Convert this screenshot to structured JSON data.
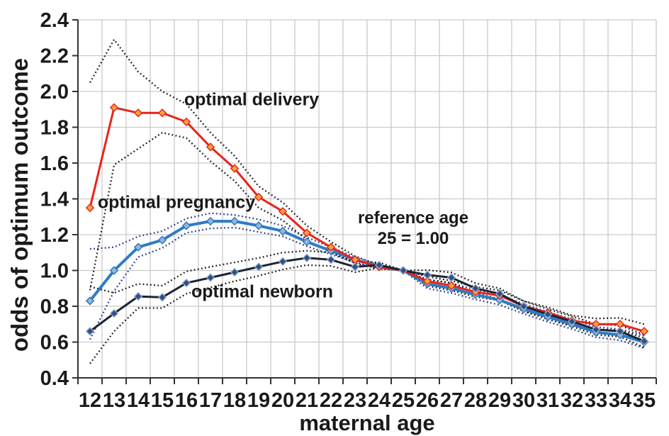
{
  "chart_data": {
    "type": "line",
    "title": "",
    "xlabel": "maternal age",
    "ylabel": "odds of optimum outcome",
    "x": [
      12,
      13,
      14,
      15,
      16,
      17,
      18,
      19,
      20,
      21,
      22,
      23,
      24,
      25,
      26,
      27,
      28,
      29,
      30,
      31,
      32,
      33,
      34,
      35
    ],
    "xtick_labels": [
      "12",
      "13",
      "14",
      "15",
      "16",
      "17",
      "18",
      "19",
      "20",
      "21",
      "22",
      "23",
      "24",
      "25",
      "26",
      "27",
      "28",
      "29",
      "30",
      "31",
      "32",
      "33",
      "34",
      "35"
    ],
    "ytick_labels": [
      "2.4",
      "2.2",
      "2.0",
      "1.8",
      "1.6",
      "1.4",
      "1.2",
      "1.0",
      "0.8",
      "0.6",
      "0.4"
    ],
    "ylim": [
      0.4,
      2.4
    ],
    "ytick_step": 0.2,
    "grid": true,
    "legend_position": "inline-annotations",
    "annotations": {
      "delivery": "optimal delivery",
      "pregnancy": "optimal pregnancy",
      "newborn": "optimal newborn",
      "reference_line1": "reference age",
      "reference_line2": "25 = 1.00"
    },
    "reference_age": 25,
    "reference_value": "1.00",
    "series": [
      {
        "name": "optimal pregnancy",
        "line_color": "#2E7CC4",
        "line_width": 4,
        "marker_fill": "#8FB8E0",
        "marker_stroke": "#2E75B6",
        "ci_color": "#2B3A90",
        "values": [
          0.83,
          1.0,
          1.13,
          1.17,
          1.25,
          1.275,
          1.275,
          1.25,
          1.22,
          1.16,
          1.11,
          1.06,
          1.02,
          1.0,
          0.925,
          0.9,
          0.865,
          0.835,
          0.785,
          0.74,
          0.7,
          0.655,
          0.64,
          0.6
        ],
        "ci_upper": [
          1.12,
          1.13,
          1.19,
          1.22,
          1.29,
          1.32,
          1.31,
          1.285,
          1.25,
          1.185,
          1.13,
          1.075,
          1.03,
          1.0,
          0.951,
          0.927,
          0.893,
          0.863,
          0.813,
          0.768,
          0.728,
          0.684,
          0.672,
          0.636
        ],
        "ci_lower": [
          0.615,
          0.885,
          1.075,
          1.125,
          1.21,
          1.235,
          1.24,
          1.215,
          1.19,
          1.135,
          1.09,
          1.045,
          1.01,
          1.0,
          0.9,
          0.874,
          0.838,
          0.808,
          0.758,
          0.713,
          0.673,
          0.627,
          0.61,
          0.566
        ]
      },
      {
        "name": "optimal delivery",
        "line_color": "#E8231A",
        "line_width": 3,
        "marker_fill": "#F9A13C",
        "marker_stroke": "#E8231A",
        "ci_color": "#1A1A1A",
        "values": [
          1.35,
          1.91,
          1.88,
          1.88,
          1.83,
          1.69,
          1.57,
          1.41,
          1.33,
          1.21,
          1.13,
          1.06,
          1.02,
          1.0,
          0.94,
          0.915,
          0.88,
          0.86,
          0.8,
          0.765,
          0.72,
          0.7,
          0.7,
          0.66
        ],
        "ci_upper": [
          2.05,
          2.29,
          2.11,
          2.0,
          1.93,
          1.77,
          1.64,
          1.47,
          1.38,
          1.25,
          1.16,
          1.08,
          1.03,
          1.0,
          0.966,
          0.942,
          0.908,
          0.889,
          0.829,
          0.794,
          0.749,
          0.732,
          0.735,
          0.7
        ],
        "ci_lower": [
          0.89,
          1.59,
          1.68,
          1.77,
          1.74,
          1.61,
          1.5,
          1.35,
          1.28,
          1.17,
          1.1,
          1.04,
          1.01,
          1.0,
          0.914,
          0.888,
          0.853,
          0.832,
          0.772,
          0.737,
          0.692,
          0.67,
          0.667,
          0.623
        ]
      },
      {
        "name": "optimal newborn",
        "line_color": "#1B2434",
        "line_width": 3,
        "marker_fill": "#31507F",
        "marker_stroke": "#8CA6CC",
        "ci_color": "#1A1A1A",
        "values": [
          0.66,
          0.76,
          0.855,
          0.85,
          0.93,
          0.96,
          0.99,
          1.02,
          1.05,
          1.07,
          1.06,
          1.02,
          1.03,
          1.0,
          0.975,
          0.96,
          0.9,
          0.87,
          0.8,
          0.755,
          0.715,
          0.67,
          0.66,
          0.605
        ],
        "ci_upper": [
          0.91,
          0.875,
          0.925,
          0.915,
          0.995,
          1.02,
          1.045,
          1.07,
          1.1,
          1.11,
          1.1,
          1.05,
          1.045,
          1.0,
          1.002,
          0.989,
          0.929,
          0.9,
          0.829,
          0.784,
          0.744,
          0.7,
          0.693,
          0.641
        ],
        "ci_lower": [
          0.48,
          0.66,
          0.79,
          0.79,
          0.87,
          0.905,
          0.94,
          0.97,
          1.005,
          1.03,
          1.025,
          0.99,
          1.015,
          1.0,
          0.948,
          0.932,
          0.872,
          0.841,
          0.772,
          0.727,
          0.687,
          0.641,
          0.629,
          0.571
        ]
      }
    ],
    "colors": {
      "grid": "#C9C9C9",
      "axis": "#333333",
      "text": "#1A1A1A",
      "background": "#FFFFFF"
    }
  }
}
